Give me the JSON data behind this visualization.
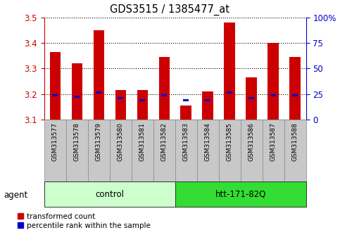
{
  "title": "GDS3515 / 1385477_at",
  "samples": [
    "GSM313577",
    "GSM313578",
    "GSM313579",
    "GSM313580",
    "GSM313581",
    "GSM313582",
    "GSM313583",
    "GSM313584",
    "GSM313585",
    "GSM313586",
    "GSM313587",
    "GSM313588"
  ],
  "transformed_count": [
    3.365,
    3.32,
    3.45,
    3.215,
    3.215,
    3.345,
    3.155,
    3.21,
    3.48,
    3.265,
    3.4,
    3.345
  ],
  "percentile_rank": [
    3.196,
    3.19,
    3.205,
    3.183,
    3.175,
    3.195,
    3.175,
    3.175,
    3.205,
    3.183,
    3.196,
    3.196
  ],
  "bar_bottom": 3.1,
  "ylim_left": [
    3.1,
    3.5
  ],
  "ylim_right": [
    0,
    100
  ],
  "yticks_left": [
    3.1,
    3.2,
    3.3,
    3.4,
    3.5
  ],
  "yticks_right": [
    0,
    25,
    50,
    75,
    100
  ],
  "ytick_labels_right": [
    "0",
    "25",
    "50",
    "75",
    "100%"
  ],
  "groups": [
    {
      "label": "control",
      "start": 0,
      "end": 5,
      "color": "#ccffcc"
    },
    {
      "label": "htt-171-82Q",
      "start": 6,
      "end": 11,
      "color": "#33dd33"
    }
  ],
  "agent_label": "agent",
  "bar_color_red": "#cc0000",
  "bar_color_blue": "#0000cc",
  "tick_color_left": "#cc0000",
  "tick_color_right": "#0000cc",
  "legend_items": [
    {
      "color": "#cc0000",
      "label": "transformed count"
    },
    {
      "color": "#0000cc",
      "label": "percentile rank within the sample"
    }
  ],
  "bar_width": 0.5,
  "blue_bar_width": 0.25,
  "blue_bar_height": 0.008,
  "sample_box_color": "#c8c8c8",
  "sample_box_edge_color": "#888888"
}
